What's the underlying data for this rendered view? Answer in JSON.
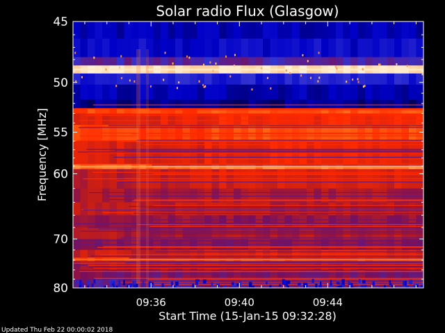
{
  "chart_data": {
    "type": "heatmap",
    "title": "Solar radio Flux (Glasgow)",
    "xlabel": "Start Time (15-Jan-15 09:32:28)",
    "ylabel": "Frequency [MHz]",
    "x_unit": "time (HH:MM)",
    "x_range": [
      "09:32:28",
      "09:48:20"
    ],
    "xticks": [
      {
        "label": "09:36",
        "minutes": 216
      },
      {
        "label": "09:40",
        "minutes": 220
      },
      {
        "label": "09:44",
        "minutes": 224
      }
    ],
    "y_scale": "reciprocal (frequency decreases downward, axis labels as printed)",
    "ylim": [
      45,
      80
    ],
    "yticks": [
      {
        "label": "45",
        "value": 45
      },
      {
        "label": "50",
        "value": 50
      },
      {
        "label": "55",
        "value": 55
      },
      {
        "label": "60",
        "value": 60
      },
      {
        "label": "70",
        "value": 70
      },
      {
        "label": "80",
        "value": 80
      }
    ],
    "colormap": [
      "#00005a",
      "#0000c8",
      "#3232d2",
      "#7a0f5a",
      "#c81e14",
      "#ff2a00",
      "#ff6414",
      "#ffb464",
      "#fff0d2"
    ],
    "bands": [
      {
        "from": 45.0,
        "to": 46.3,
        "level": 0.1
      },
      {
        "from": 46.3,
        "to": 47.8,
        "level": 0.15
      },
      {
        "from": 47.8,
        "to": 48.5,
        "level": 0.3
      },
      {
        "from": 48.5,
        "to": 49.2,
        "level": 0.97
      },
      {
        "from": 49.2,
        "to": 50.2,
        "level": 0.2
      },
      {
        "from": 50.2,
        "to": 51.6,
        "level": 0.1
      },
      {
        "from": 51.6,
        "to": 52.5,
        "level": 0.05
      },
      {
        "from": 52.5,
        "to": 53.0,
        "level": 0.72
      },
      {
        "from": 53.0,
        "to": 54.2,
        "level": 0.6
      },
      {
        "from": 54.2,
        "to": 56.0,
        "level": 0.7
      },
      {
        "from": 56.0,
        "to": 58.8,
        "level": 0.58
      },
      {
        "from": 58.8,
        "to": 59.4,
        "level": 0.8
      },
      {
        "from": 59.4,
        "to": 62.0,
        "level": 0.52
      },
      {
        "from": 62.0,
        "to": 64.0,
        "level": 0.45
      },
      {
        "from": 64.0,
        "to": 66.0,
        "level": 0.48
      },
      {
        "from": 66.0,
        "to": 68.0,
        "level": 0.42
      },
      {
        "from": 68.0,
        "to": 70.0,
        "level": 0.46
      },
      {
        "from": 70.0,
        "to": 72.0,
        "level": 0.4
      },
      {
        "from": 72.0,
        "to": 73.5,
        "level": 0.55
      },
      {
        "from": 73.5,
        "to": 74.2,
        "level": 0.7
      },
      {
        "from": 74.2,
        "to": 76.0,
        "level": 0.44
      },
      {
        "from": 76.0,
        "to": 78.0,
        "level": 0.38
      },
      {
        "from": 78.0,
        "to": 80.0,
        "level": 0.32
      }
    ]
  },
  "footer": {
    "updated": "Updated Thu Feb 22 00:00:02 2018"
  }
}
